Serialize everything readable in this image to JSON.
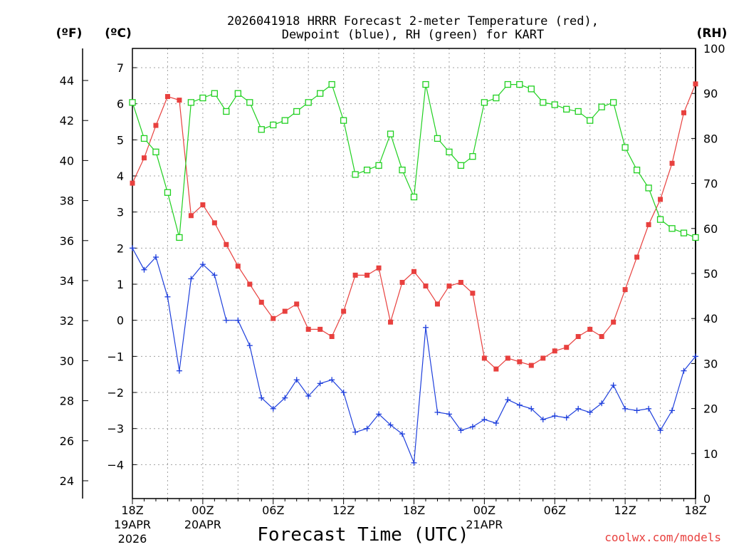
{
  "chart_data": {
    "type": "line",
    "title_line1": "2026041918 HRRR Forecast 2-meter Temperature (red),",
    "title_line2": "Dewpoint (blue), RH (green) for KART",
    "xlabel": "Forecast Time (UTC)",
    "credit": "coolwx.com/models",
    "units": {
      "fahrenheit": "(ºF)",
      "celsius": "(ºC)",
      "rh": "(RH)"
    },
    "x": [
      0,
      1,
      2,
      3,
      4,
      5,
      6,
      7,
      8,
      9,
      10,
      11,
      12,
      13,
      14,
      15,
      16,
      17,
      18,
      19,
      20,
      21,
      22,
      23,
      24,
      25,
      26,
      27,
      28,
      29,
      30,
      31,
      32,
      33,
      34,
      35,
      36,
      37,
      38,
      39,
      40,
      41,
      42,
      43,
      44,
      45,
      46,
      47,
      48
    ],
    "xlim": [
      0,
      48
    ],
    "x_ticks": [
      {
        "pos": 0,
        "label": "18Z",
        "sub1": "19APR",
        "sub2": "2026"
      },
      {
        "pos": 6,
        "label": "00Z",
        "sub1": "20APR",
        "sub2": ""
      },
      {
        "pos": 12,
        "label": "06Z",
        "sub1": "",
        "sub2": ""
      },
      {
        "pos": 18,
        "label": "12Z",
        "sub1": "",
        "sub2": ""
      },
      {
        "pos": 24,
        "label": "18Z",
        "sub1": "",
        "sub2": ""
      },
      {
        "pos": 30,
        "label": "00Z",
        "sub1": "21APR",
        "sub2": ""
      },
      {
        "pos": 36,
        "label": "06Z",
        "sub1": "",
        "sub2": ""
      },
      {
        "pos": 42,
        "label": "12Z",
        "sub1": "",
        "sub2": ""
      },
      {
        "pos": 48,
        "label": "18Z",
        "sub1": "",
        "sub2": ""
      }
    ],
    "ylim_c": [
      -5,
      7.5
    ],
    "y_ticks_c": [
      "-4",
      "-3",
      "-2",
      "-1",
      "0",
      "1",
      "2",
      "3",
      "4",
      "5",
      "6",
      "7"
    ],
    "y_ticks_c_values": [
      -4,
      -3,
      -2,
      -1,
      0,
      1,
      2,
      3,
      4,
      5,
      6,
      7
    ],
    "y_ticks_f": [
      "24",
      "26",
      "28",
      "30",
      "32",
      "34",
      "36",
      "38",
      "40",
      "42",
      "44"
    ],
    "y_ticks_f_values": [
      24,
      26,
      28,
      30,
      32,
      34,
      36,
      38,
      40,
      42,
      44
    ],
    "ylim_rh": [
      0,
      100
    ],
    "y_ticks_rh": [
      "0",
      "10",
      "20",
      "30",
      "40",
      "50",
      "60",
      "70",
      "80",
      "90",
      "100"
    ],
    "y_ticks_rh_values": [
      0,
      10,
      20,
      30,
      40,
      50,
      60,
      70,
      80,
      90,
      100
    ],
    "series": [
      {
        "key": "temperature",
        "color": "#e8403e",
        "marker": "filled-square",
        "axis": "celsius",
        "values": [
          3.8,
          4.5,
          5.4,
          6.2,
          6.1,
          2.9,
          3.2,
          2.7,
          2.1,
          1.5,
          1.0,
          0.5,
          0.05,
          0.25,
          0.45,
          -0.25,
          -0.25,
          -0.45,
          0.25,
          1.25,
          1.25,
          1.45,
          -0.05,
          1.05,
          1.35,
          0.95,
          0.45,
          0.95,
          1.05,
          0.75,
          -1.05,
          -1.35,
          -1.05,
          -1.15,
          -1.25,
          -1.05,
          -0.85,
          -0.75,
          -0.45,
          -0.25,
          -0.45,
          -0.05,
          0.85,
          1.75,
          2.65,
          3.35,
          4.35,
          5.75,
          6.55
        ]
      },
      {
        "key": "dewpoint",
        "color": "#1e3fdc",
        "marker": "plus",
        "axis": "celsius",
        "values": [
          2.0,
          1.4,
          1.75,
          0.65,
          -1.4,
          1.15,
          1.55,
          1.25,
          0.0,
          0.0,
          -0.7,
          -2.15,
          -2.45,
          -2.15,
          -1.65,
          -2.1,
          -1.75,
          -1.65,
          -2.0,
          -3.1,
          -3.0,
          -2.6,
          -2.9,
          -3.15,
          -3.95,
          -0.2,
          -2.55,
          -2.6,
          -3.05,
          -2.95,
          -2.75,
          -2.85,
          -2.2,
          -2.35,
          -2.45,
          -2.75,
          -2.65,
          -2.7,
          -2.45,
          -2.55,
          -2.3,
          -1.8,
          -2.45,
          -2.5,
          -2.45,
          -3.05,
          -2.5,
          -1.4,
          -1.0
        ]
      },
      {
        "key": "rh",
        "color": "#20d020",
        "marker": "open-square",
        "axis": "rh",
        "values": [
          88,
          80,
          77,
          68,
          58,
          88,
          89,
          90,
          86,
          90,
          88,
          82,
          83,
          84,
          86,
          88,
          90,
          92,
          84,
          72,
          73,
          74,
          81,
          73,
          67,
          92,
          80,
          77,
          74,
          76,
          88,
          89,
          92,
          92,
          91,
          88,
          87.5,
          86.5,
          86,
          84,
          87,
          88,
          78,
          73,
          69,
          62,
          60,
          59,
          58
        ]
      }
    ]
  }
}
